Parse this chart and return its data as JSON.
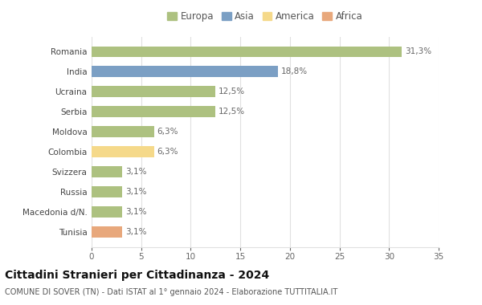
{
  "categories": [
    "Tunisia",
    "Macedonia d/N.",
    "Russia",
    "Svizzera",
    "Colombia",
    "Moldova",
    "Serbia",
    "Ucraina",
    "India",
    "Romania"
  ],
  "values": [
    3.1,
    3.1,
    3.1,
    3.1,
    6.3,
    6.3,
    12.5,
    12.5,
    18.8,
    31.3
  ],
  "labels": [
    "3,1%",
    "3,1%",
    "3,1%",
    "3,1%",
    "6,3%",
    "6,3%",
    "12,5%",
    "12,5%",
    "18,8%",
    "31,3%"
  ],
  "colors": [
    "#e8a87c",
    "#adc180",
    "#adc180",
    "#adc180",
    "#f5d98a",
    "#adc180",
    "#adc180",
    "#adc180",
    "#7b9fc4",
    "#adc180"
  ],
  "legend": [
    {
      "label": "Europa",
      "color": "#adc180"
    },
    {
      "label": "Asia",
      "color": "#7b9fc4"
    },
    {
      "label": "America",
      "color": "#f5d98a"
    },
    {
      "label": "Africa",
      "color": "#e8a87c"
    }
  ],
  "xlim": [
    0,
    35
  ],
  "xticks": [
    0,
    5,
    10,
    15,
    20,
    25,
    30,
    35
  ],
  "title": "Cittadini Stranieri per Cittadinanza - 2024",
  "subtitle": "COMUNE DI SOVER (TN) - Dati ISTAT al 1° gennaio 2024 - Elaborazione TUTTITALIA.IT",
  "bar_height": 0.55,
  "grid_color": "#e0e0e0",
  "bg_color": "#ffffff",
  "label_fontsize": 7.5,
  "ytick_fontsize": 7.5,
  "xtick_fontsize": 7.5,
  "title_fontsize": 10,
  "subtitle_fontsize": 7.0,
  "legend_fontsize": 8.5
}
